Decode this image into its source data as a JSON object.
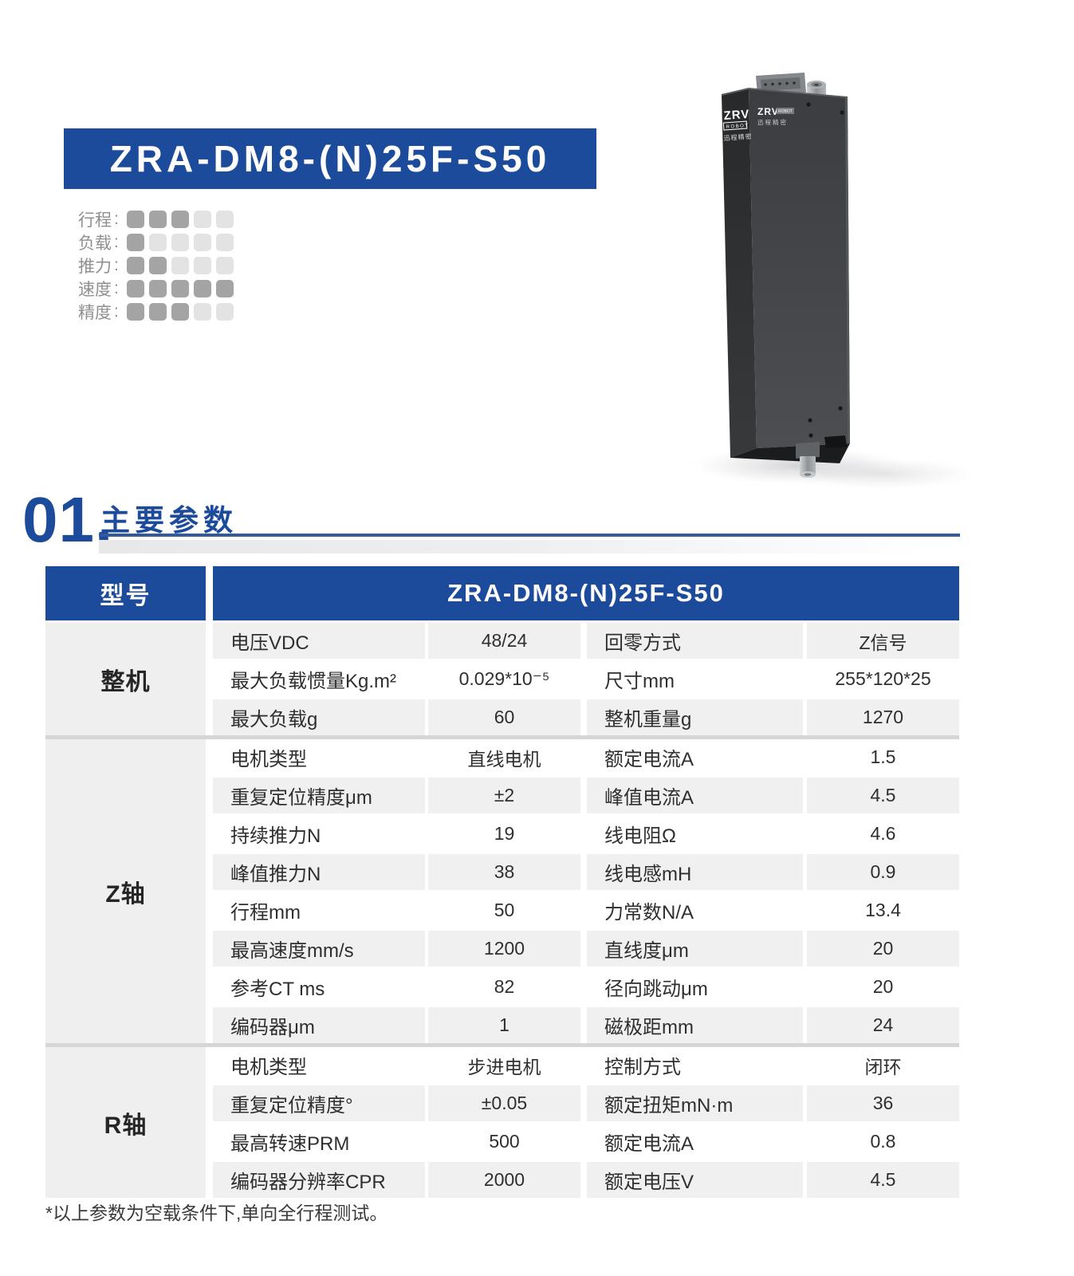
{
  "page": {
    "title": "ZRA-DM8-(N)25F-S50",
    "section_number": "01.",
    "section_title": "主要参数",
    "footnote": "*以上参数为空载条件下,单向全行程测试。"
  },
  "ratings": {
    "max": 5,
    "colon": ":",
    "items": [
      {
        "label": "行程",
        "value": 3
      },
      {
        "label": "负载",
        "value": 1
      },
      {
        "label": "推力",
        "value": 2
      },
      {
        "label": "速度",
        "value": 5
      },
      {
        "label": "精度",
        "value": 3
      }
    ]
  },
  "device": {
    "side_logo_brand": "ZRV",
    "side_logo_sub": "ROBOT",
    "side_logo_cn": "迅程精密",
    "front_logo_brand": "ZRV",
    "front_logo_badge": "ROBOT",
    "front_logo_cn": "迅程精密"
  },
  "table": {
    "header": {
      "label": "型号",
      "model": "ZRA-DM8-(N)25F-S50"
    },
    "sections": [
      {
        "group": "整机",
        "rows": [
          [
            "电压VDC",
            "48/24",
            "回零方式",
            "Z信号"
          ],
          [
            "最大负载惯量Kg.m²",
            "0.029*10⁻⁵",
            "尺寸mm",
            "255*120*25"
          ],
          [
            "最大负载g",
            "60",
            "整机重量g",
            "1270"
          ]
        ]
      },
      {
        "group": "Z轴",
        "rows": [
          [
            "电机类型",
            "直线电机",
            "额定电流A",
            "1.5"
          ],
          [
            "重复定位精度μm",
            "±2",
            "峰值电流A",
            "4.5"
          ],
          [
            "持续推力N",
            "19",
            "线电阻Ω",
            "4.6"
          ],
          [
            "峰值推力N",
            "38",
            "线电感mH",
            "0.9"
          ],
          [
            "行程mm",
            "50",
            "力常数N/A",
            "13.4"
          ],
          [
            "最高速度mm/s",
            "1200",
            "直线度μm",
            "20"
          ],
          [
            "参考CT ms",
            "82",
            "径向跳动μm",
            "20"
          ],
          [
            "编码器μm",
            "1",
            "磁极距mm",
            "24"
          ]
        ]
      },
      {
        "group": "R轴",
        "rows": [
          [
            "电机类型",
            "步进电机",
            "控制方式",
            "闭环"
          ],
          [
            "重复定位精度°",
            "±0.05",
            "额定扭矩mN·m",
            "36"
          ],
          [
            "最高转速PRM",
            "500",
            "额定电流A",
            "0.8"
          ],
          [
            "编码器分辨率CPR",
            "2000",
            "额定电压V",
            "4.5"
          ]
        ]
      }
    ]
  },
  "colors": {
    "accent_blue": "#1d4b9b",
    "rule_blue": "#345a9e",
    "row_gray": "#f0f0f0",
    "label_gray": "#efefef",
    "divider_gray": "#d6d6d6",
    "rating_filled": "#a4a4a4",
    "rating_empty": "#e3e3e3",
    "text_dark": "#2f2f2f",
    "rating_label_gray": "#8f8f8f"
  }
}
